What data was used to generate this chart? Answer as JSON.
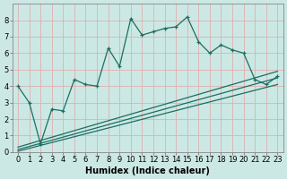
{
  "xlabel": "Humidex (Indice chaleur)",
  "background_color": "#cce8e4",
  "grid_color": "#b0d8d0",
  "line_color": "#1a6e62",
  "xlim": [
    -0.5,
    23.5
  ],
  "ylim": [
    0,
    9
  ],
  "xticks": [
    0,
    1,
    2,
    3,
    4,
    5,
    6,
    7,
    8,
    9,
    10,
    11,
    12,
    13,
    14,
    15,
    16,
    17,
    18,
    19,
    20,
    21,
    22,
    23
  ],
  "yticks": [
    0,
    1,
    2,
    3,
    4,
    5,
    6,
    7,
    8
  ],
  "main_x": [
    0,
    1,
    2,
    3,
    4,
    5,
    6,
    7,
    8,
    9,
    10,
    11,
    12,
    13,
    14,
    15,
    16,
    17,
    18,
    19,
    20,
    21,
    22,
    23
  ],
  "main_y": [
    4.0,
    3.0,
    0.5,
    2.6,
    2.5,
    4.4,
    4.1,
    4.0,
    6.3,
    5.2,
    8.1,
    7.1,
    7.3,
    7.5,
    7.6,
    8.2,
    6.7,
    6.0,
    6.5,
    6.2,
    6.0,
    4.4,
    4.1,
    4.6
  ],
  "trend1_x": [
    0,
    23
  ],
  "trend1_y": [
    0.3,
    4.9
  ],
  "trend2_x": [
    0,
    23
  ],
  "trend2_y": [
    0.15,
    4.5
  ],
  "trend3_x": [
    0,
    23
  ],
  "trend3_y": [
    0.05,
    4.1
  ],
  "xlabel_fontsize": 7.0,
  "tick_fontsize": 6.0
}
